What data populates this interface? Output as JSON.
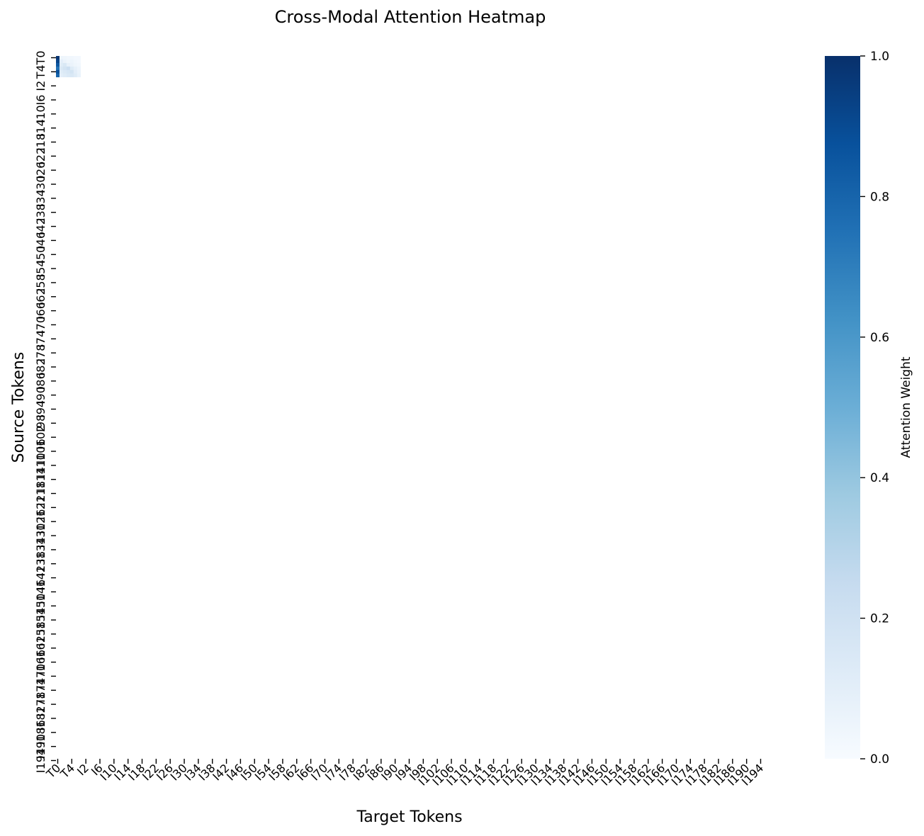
{
  "chart_data": {
    "type": "heatmap",
    "title": "Cross-Modal Attention Heatmap",
    "xlabel": "Target Tokens",
    "ylabel": "Source Tokens",
    "colorbar": {
      "label": "Attention Weight",
      "range": [
        0.0,
        1.0
      ],
      "ticks": [
        "0.0",
        "0.2",
        "0.4",
        "0.6",
        "0.8",
        "1.0"
      ],
      "colormap": "Blues",
      "color_low": "#f7fbff",
      "color_high": "#08306b"
    },
    "x_tick_labels": [
      "T0",
      "T4",
      "I2",
      "I6",
      "I10",
      "I14",
      "I18",
      "I22",
      "I26",
      "I30",
      "I34",
      "I38",
      "I42",
      "I46",
      "I50",
      "I54",
      "I58",
      "I62",
      "I66",
      "I70",
      "I74",
      "I78",
      "I82",
      "I86",
      "I90",
      "I94",
      "I98",
      "I102",
      "I106",
      "I110",
      "I114",
      "I118",
      "I122",
      "I126",
      "I130",
      "I134",
      "I138",
      "I142",
      "I146",
      "I150",
      "I154",
      "I158",
      "I162",
      "I166",
      "I170",
      "I174",
      "I178",
      "I182",
      "I186",
      "I190",
      "I194"
    ],
    "y_tick_labels": [
      "T0",
      "T4",
      "I2",
      "I6",
      "I10",
      "I14",
      "I18",
      "I22",
      "I26",
      "I30",
      "I34",
      "I38",
      "I42",
      "I46",
      "I50",
      "I54",
      "I58",
      "I62",
      "I66",
      "I70",
      "I74",
      "I78",
      "I82",
      "I86",
      "I90",
      "I94",
      "I98",
      "I102",
      "I106",
      "I110",
      "I114",
      "I118",
      "I122",
      "I126",
      "I130",
      "I134",
      "I138",
      "I142",
      "I146",
      "I150",
      "I154",
      "I158",
      "I162",
      "I166",
      "I170",
      "I174",
      "I178",
      "I182",
      "I186",
      "I190",
      "I194"
    ],
    "tick_step": 4,
    "matrix_size": 200,
    "nonzero_cells": [
      {
        "row": 0,
        "col": 0,
        "value": 0.98
      },
      {
        "row": 0,
        "col": 1,
        "value": 0.05
      },
      {
        "row": 0,
        "col": 2,
        "value": 0.04
      },
      {
        "row": 0,
        "col": 3,
        "value": 0.03
      },
      {
        "row": 0,
        "col": 4,
        "value": 0.03
      },
      {
        "row": 0,
        "col": 5,
        "value": 0.02
      },
      {
        "row": 0,
        "col": 6,
        "value": 0.02
      },
      {
        "row": 1,
        "col": 0,
        "value": 0.92
      },
      {
        "row": 1,
        "col": 1,
        "value": 0.1
      },
      {
        "row": 1,
        "col": 2,
        "value": 0.06
      },
      {
        "row": 1,
        "col": 3,
        "value": 0.04
      },
      {
        "row": 1,
        "col": 4,
        "value": 0.05
      },
      {
        "row": 1,
        "col": 5,
        "value": 0.03
      },
      {
        "row": 1,
        "col": 6,
        "value": 0.02
      },
      {
        "row": 2,
        "col": 0,
        "value": 0.85
      },
      {
        "row": 2,
        "col": 1,
        "value": 0.12
      },
      {
        "row": 2,
        "col": 2,
        "value": 0.15
      },
      {
        "row": 2,
        "col": 3,
        "value": 0.08
      },
      {
        "row": 2,
        "col": 4,
        "value": 0.06
      },
      {
        "row": 2,
        "col": 5,
        "value": 0.04
      },
      {
        "row": 2,
        "col": 6,
        "value": 0.03
      },
      {
        "row": 3,
        "col": 0,
        "value": 0.75
      },
      {
        "row": 3,
        "col": 1,
        "value": 0.15
      },
      {
        "row": 3,
        "col": 2,
        "value": 0.18
      },
      {
        "row": 3,
        "col": 3,
        "value": 0.22
      },
      {
        "row": 3,
        "col": 4,
        "value": 0.12
      },
      {
        "row": 3,
        "col": 5,
        "value": 0.08
      },
      {
        "row": 3,
        "col": 6,
        "value": 0.05
      },
      {
        "row": 4,
        "col": 0,
        "value": 0.88
      },
      {
        "row": 4,
        "col": 1,
        "value": 0.12
      },
      {
        "row": 4,
        "col": 2,
        "value": 0.14
      },
      {
        "row": 4,
        "col": 3,
        "value": 0.16
      },
      {
        "row": 4,
        "col": 4,
        "value": 0.18
      },
      {
        "row": 4,
        "col": 5,
        "value": 0.1
      },
      {
        "row": 4,
        "col": 6,
        "value": 0.06
      },
      {
        "row": 5,
        "col": 0,
        "value": 0.8
      },
      {
        "row": 5,
        "col": 1,
        "value": 0.1
      },
      {
        "row": 5,
        "col": 2,
        "value": 0.12
      },
      {
        "row": 5,
        "col": 3,
        "value": 0.14
      },
      {
        "row": 5,
        "col": 4,
        "value": 0.15
      },
      {
        "row": 5,
        "col": 5,
        "value": 0.12
      },
      {
        "row": 5,
        "col": 6,
        "value": 0.07
      }
    ]
  }
}
